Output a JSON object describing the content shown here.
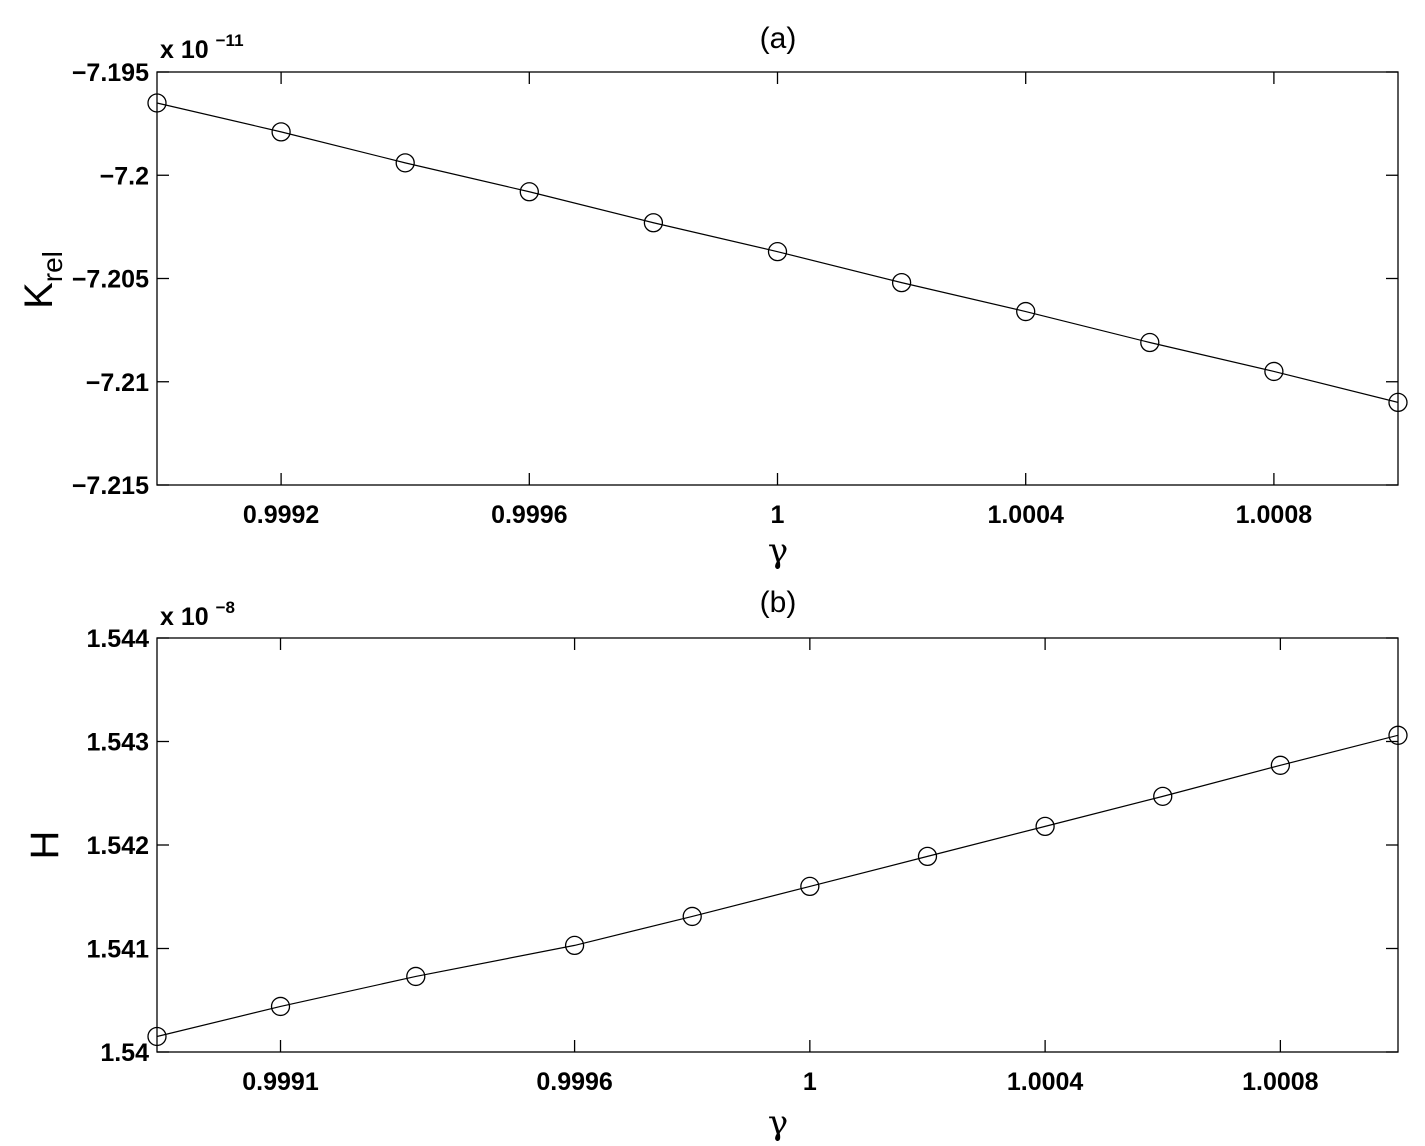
{
  "chart_data": [
    {
      "type": "line",
      "title": "(a)",
      "xlabel": "γ",
      "ylabel": "K",
      "ylabel_subscript": "rel",
      "y_multiplier": {
        "base": "x 10",
        "exponent": "−11"
      },
      "xlim": [
        0.999,
        1.001
      ],
      "ylim": [
        -7.215,
        -7.195
      ],
      "x_ticks": [
        0.9992,
        0.9996,
        1.0,
        1.0004,
        1.0008
      ],
      "x_tick_labels": [
        "0.9992",
        "0.9996",
        "1",
        "1.0004",
        "1.0008"
      ],
      "y_ticks": [
        -7.195,
        -7.2,
        -7.205,
        -7.21,
        -7.215
      ],
      "y_tick_labels": [
        "−7.195",
        "−7.2",
        "−7.205",
        "−7.21",
        "−7.215"
      ],
      "grid": false,
      "marker": "circle",
      "series": [
        {
          "x": [
            0.999,
            0.9992,
            0.9994,
            0.9996,
            0.9998,
            1.0,
            1.0002,
            1.0004,
            1.0006,
            1.0008,
            1.001
          ],
          "values": [
            -7.1965,
            -7.1979,
            -7.1994,
            -7.2008,
            -7.2023,
            -7.2037,
            -7.2052,
            -7.2066,
            -7.2081,
            -7.2095,
            -7.211
          ]
        }
      ]
    },
    {
      "type": "line",
      "title": "(b)",
      "xlabel": "γ",
      "ylabel": "H",
      "y_multiplier": {
        "base": "x 10",
        "exponent": "−8"
      },
      "xlim": [
        0.99889,
        1.001
      ],
      "ylim": [
        1.54,
        1.544
      ],
      "x_ticks": [
        0.9991,
        0.9996,
        1.0,
        1.0004,
        1.0008
      ],
      "x_tick_labels": [
        "0.9991",
        "0.9996",
        "1",
        "1.0004",
        "1.0008"
      ],
      "y_ticks": [
        1.54,
        1.541,
        1.542,
        1.543,
        1.544
      ],
      "y_tick_labels": [
        "1.54",
        "1.541",
        "1.542",
        "1.543",
        "1.544"
      ],
      "grid": false,
      "marker": "circle",
      "series": [
        {
          "x": [
            0.99889,
            0.9991,
            0.99933,
            0.9996,
            0.9998,
            1.0,
            1.0002,
            1.0004,
            1.0006,
            1.0008,
            1.001
          ],
          "values": [
            1.54015,
            1.54044,
            1.54073,
            1.54103,
            1.54131,
            1.5416,
            1.54189,
            1.54218,
            1.54247,
            1.54277,
            1.54306
          ]
        }
      ]
    }
  ]
}
